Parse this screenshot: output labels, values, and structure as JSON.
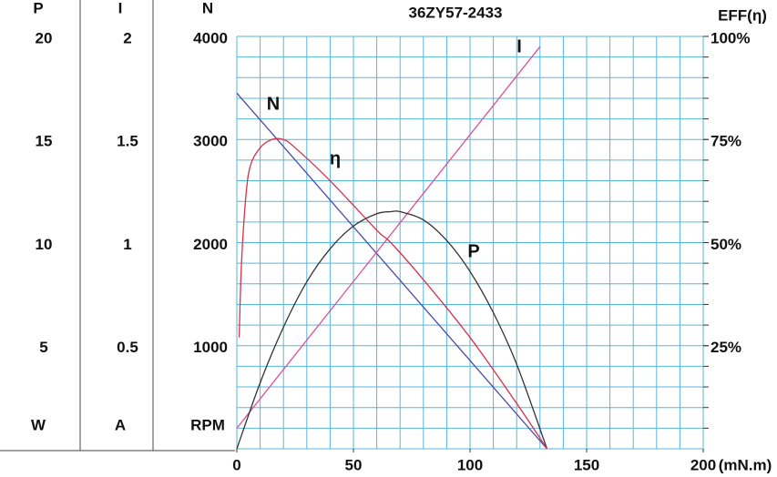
{
  "chart_data": {
    "type": "line",
    "title": "36ZY57-2433",
    "x_label": "(mN.m)",
    "xlim": [
      0,
      200
    ],
    "xticks": [
      0,
      50,
      100,
      150,
      200
    ],
    "grid": true,
    "axes": [
      {
        "name": "P",
        "unit": "W",
        "lim": [
          0,
          20
        ],
        "ticks": [
          5,
          10,
          15,
          20
        ]
      },
      {
        "name": "I",
        "unit": "A",
        "lim": [
          0,
          2
        ],
        "ticks": [
          0.5,
          1,
          1.5,
          2
        ]
      },
      {
        "name": "N",
        "unit": "RPM",
        "lim": [
          0,
          4000
        ],
        "ticks": [
          1000,
          2000,
          3000,
          4000
        ]
      },
      {
        "name": "EFF(η)",
        "lim": [
          0,
          100
        ],
        "ticks": [
          {
            "value": 25,
            "label": "25%"
          },
          {
            "value": 50,
            "label": "50%"
          },
          {
            "value": 75,
            "label": "75%"
          },
          {
            "value": 100,
            "label": "100%"
          }
        ]
      }
    ],
    "series": [
      {
        "name": "N",
        "color": "#4a4aa8",
        "axis": 2,
        "x": [
          0,
          133
        ],
        "values": [
          3450,
          0
        ]
      },
      {
        "name": "I",
        "color": "#d8509a",
        "axis": 1,
        "x": [
          0,
          130
        ],
        "values": [
          0.1,
          1.95
        ]
      },
      {
        "name": "P",
        "color": "#333333",
        "axis": 0,
        "x": [
          0,
          10,
          20,
          30,
          40,
          50,
          60,
          66,
          70,
          80,
          90,
          100,
          110,
          120,
          133
        ],
        "values": [
          0,
          3.2,
          5.9,
          8.1,
          9.7,
          10.8,
          11.4,
          11.5,
          11.5,
          11.1,
          10.1,
          8.6,
          6.6,
          4.1,
          0
        ]
      },
      {
        "name": "η",
        "color": "#d8304a",
        "axis": 3,
        "x": [
          1,
          2,
          4,
          6,
          10,
          15,
          20,
          25,
          40,
          60,
          66,
          80,
          100,
          120,
          133
        ],
        "values": [
          27,
          45,
          62,
          69,
          73,
          75,
          75,
          73,
          65,
          53,
          50,
          41,
          27,
          11,
          0
        ]
      }
    ]
  }
}
